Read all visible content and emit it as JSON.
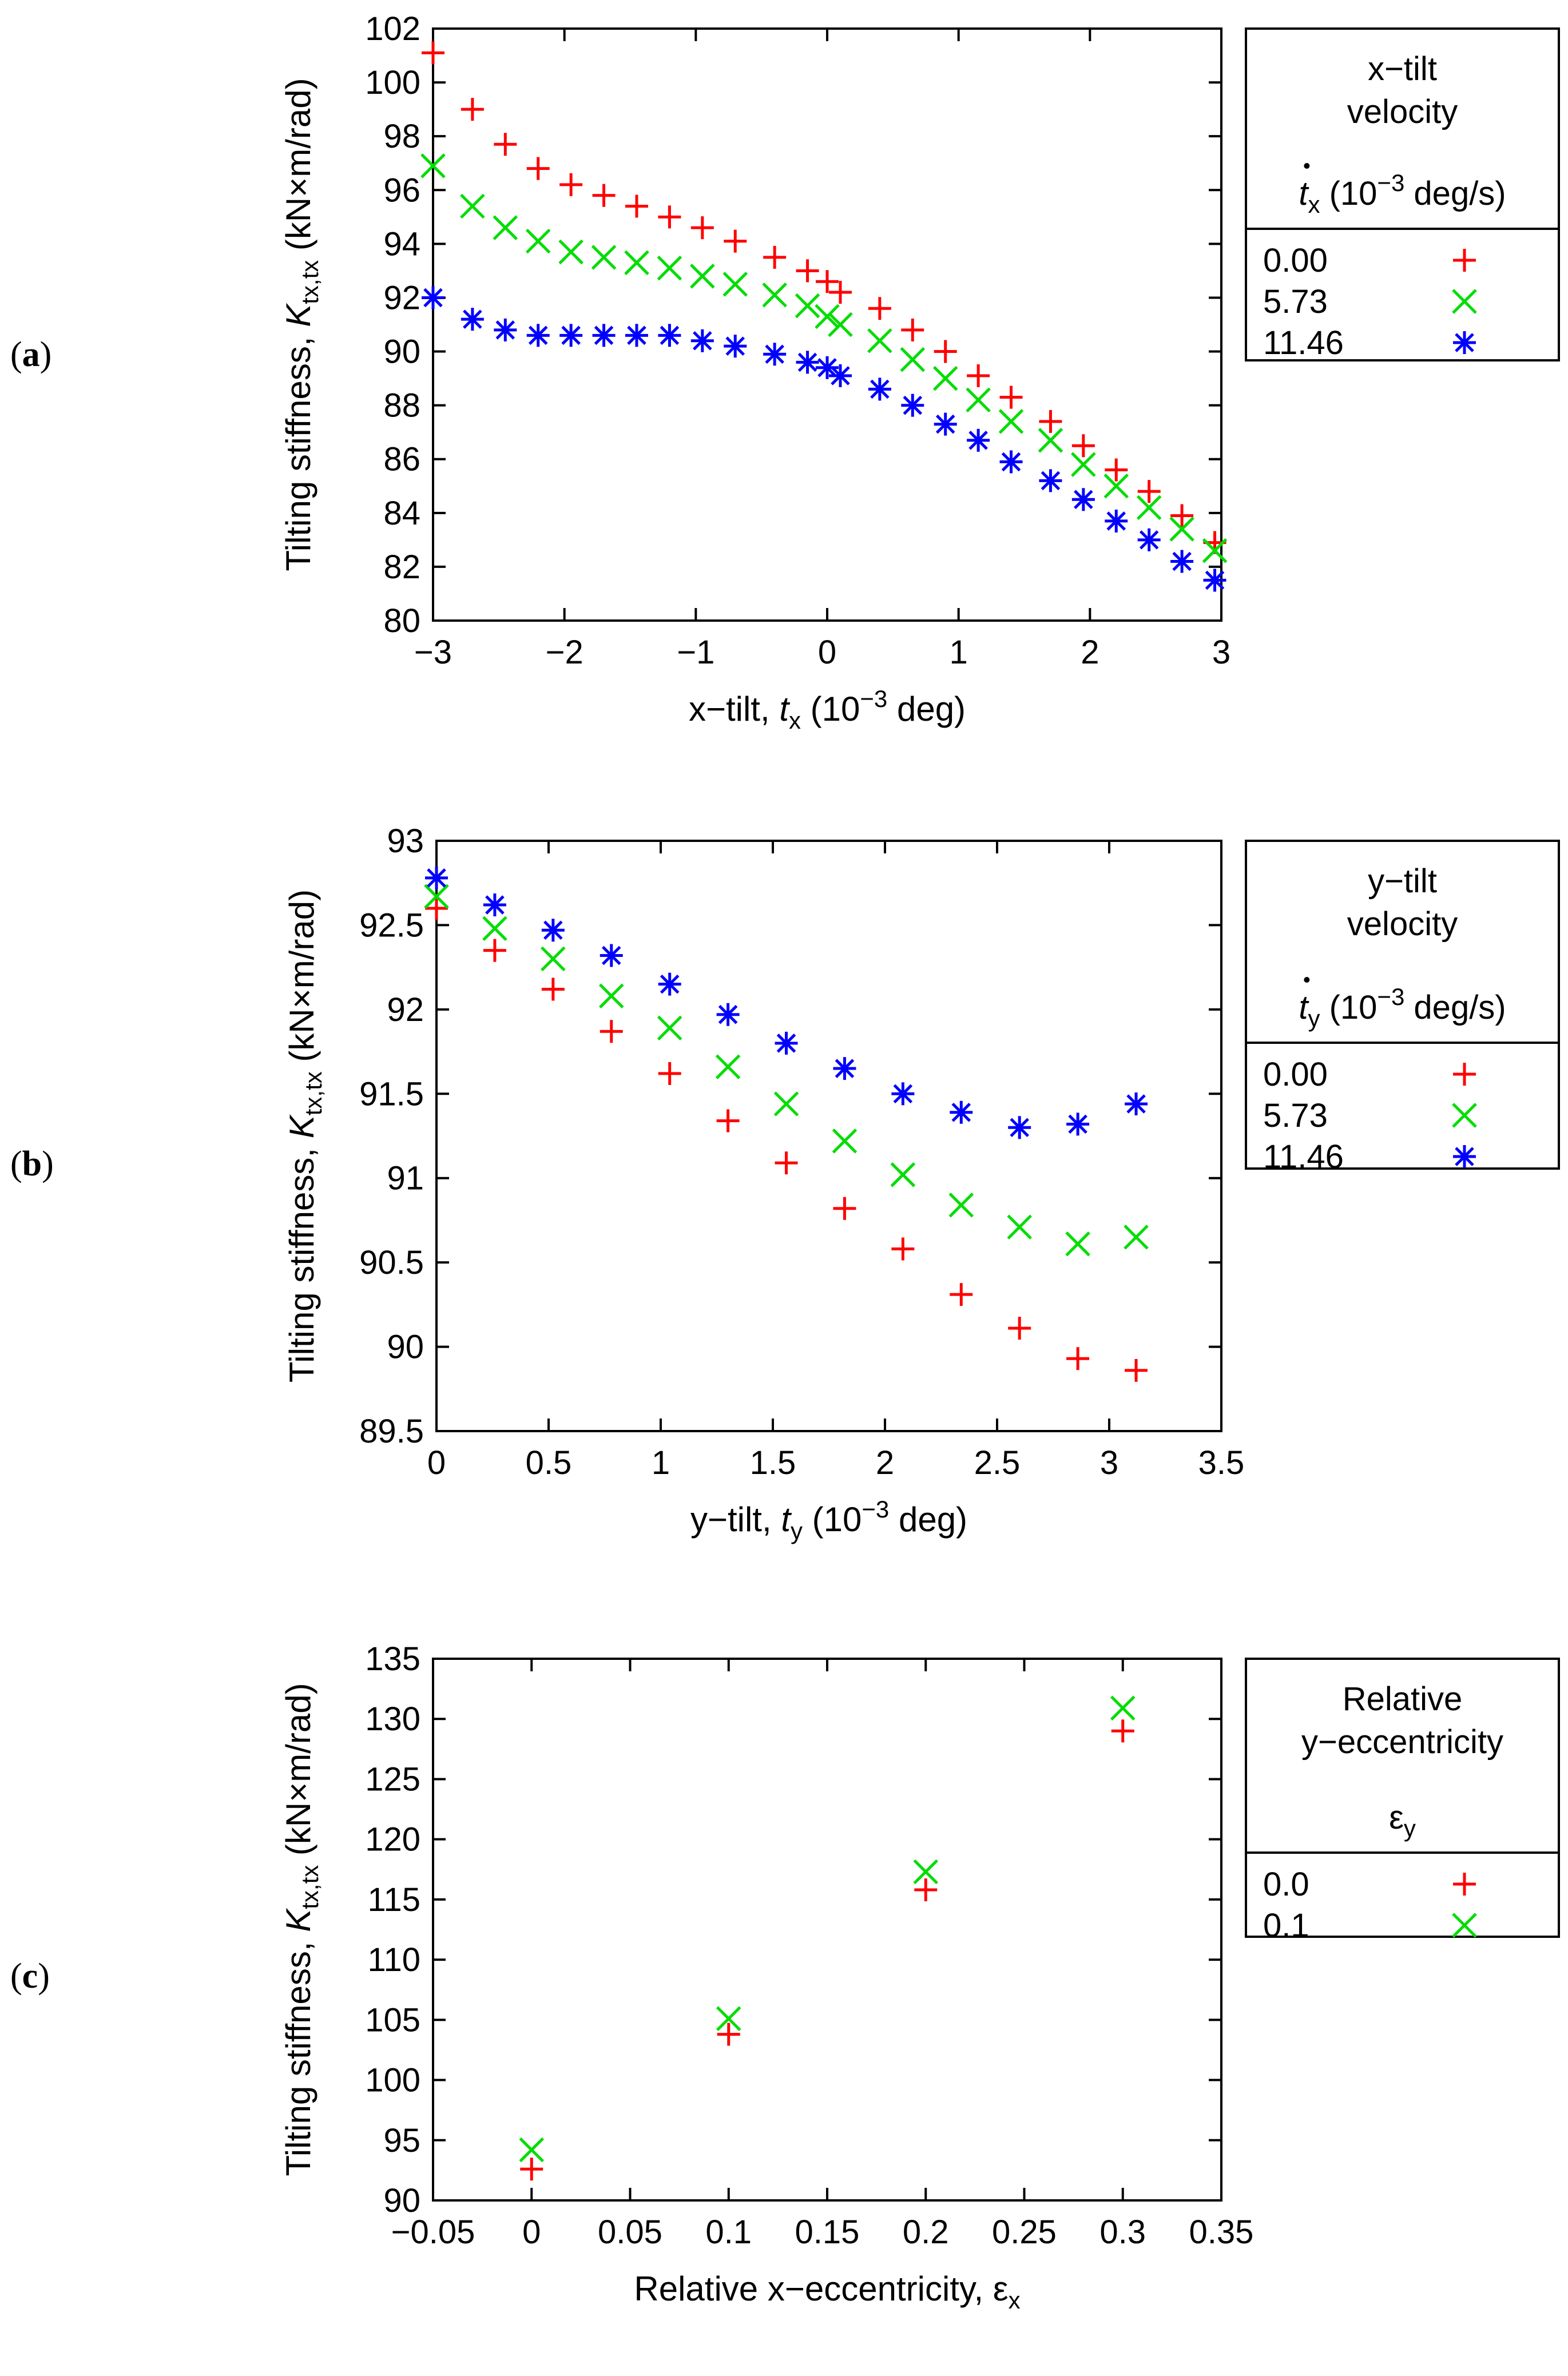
{
  "colors": {
    "red": "#ff0000",
    "green": "#00dd00",
    "blue": "#0000ff"
  },
  "chart_data": [
    {
      "type": "scatter",
      "panel_label": "a",
      "ylabel": "Tilting stiffness, K",
      "ylabel_sub": "tx,tx",
      "ylabel_unit": " (kN×m/rad)",
      "xlabel": "x−tilt, t",
      "xlabel_sub": "x",
      "xlabel_unit": " (10",
      "xlabel_exp": "−3",
      "xlabel_tail": " deg)",
      "xlim": [
        -3,
        3
      ],
      "ylim": [
        80,
        102
      ],
      "xticks": [
        -3,
        -2,
        -1,
        0,
        1,
        2,
        3
      ],
      "xtick_labels": [
        "−3",
        "−2",
        "−1",
        "0",
        "1",
        "2",
        "3"
      ],
      "yticks": [
        80,
        82,
        84,
        86,
        88,
        90,
        92,
        94,
        96,
        98,
        100,
        102
      ],
      "ytick_labels": [
        "80",
        "82",
        "84",
        "86",
        "88",
        "90",
        "92",
        "94",
        "96",
        "98",
        "100",
        "102"
      ],
      "legend": {
        "title_lines": [
          "x−tilt",
          "velocity"
        ],
        "var_main": "t",
        "var_sub": "x",
        "var_unit": " (10",
        "var_exp": "−3",
        "var_tail": " deg/s)",
        "entries": [
          "0.00",
          "5.73",
          "11.46"
        ]
      },
      "series": [
        {
          "name": "0.00",
          "marker": "plus",
          "color": "#ff0000",
          "x": [
            -3,
            -2.7,
            -2.45,
            -2.2,
            -1.95,
            -1.7,
            -1.45,
            -1.2,
            -0.95,
            -0.7,
            -0.4,
            -0.15,
            0,
            0.1,
            0.4,
            0.65,
            0.9,
            1.15,
            1.4,
            1.7,
            1.95,
            2.2,
            2.45,
            2.7,
            2.95
          ],
          "y": [
            101.1,
            99.0,
            97.7,
            96.8,
            96.2,
            95.8,
            95.4,
            95.0,
            94.6,
            94.1,
            93.5,
            93.0,
            92.6,
            92.2,
            91.6,
            90.8,
            90.0,
            89.1,
            88.3,
            87.4,
            86.5,
            85.6,
            84.8,
            83.9,
            82.9
          ]
        },
        {
          "name": "5.73",
          "marker": "cross",
          "color": "#00dd00",
          "x": [
            -3,
            -2.7,
            -2.45,
            -2.2,
            -1.95,
            -1.7,
            -1.45,
            -1.2,
            -0.95,
            -0.7,
            -0.4,
            -0.15,
            0,
            0.1,
            0.4,
            0.65,
            0.9,
            1.15,
            1.4,
            1.7,
            1.95,
            2.2,
            2.45,
            2.7,
            2.95
          ],
          "y": [
            96.9,
            95.4,
            94.6,
            94.1,
            93.7,
            93.5,
            93.3,
            93.1,
            92.8,
            92.5,
            92.1,
            91.7,
            91.3,
            91.0,
            90.4,
            89.7,
            89.0,
            88.2,
            87.4,
            86.7,
            85.8,
            85.0,
            84.2,
            83.4,
            82.6
          ]
        },
        {
          "name": "11.46",
          "marker": "star",
          "color": "#0000ff",
          "x": [
            -3,
            -2.7,
            -2.45,
            -2.2,
            -1.95,
            -1.7,
            -1.45,
            -1.2,
            -0.95,
            -0.7,
            -0.4,
            -0.15,
            0,
            0.1,
            0.4,
            0.65,
            0.9,
            1.15,
            1.4,
            1.7,
            1.95,
            2.2,
            2.45,
            2.7,
            2.95
          ],
          "y": [
            92.0,
            91.2,
            90.8,
            90.6,
            90.6,
            90.6,
            90.6,
            90.6,
            90.4,
            90.2,
            89.9,
            89.6,
            89.4,
            89.1,
            88.6,
            88.0,
            87.3,
            86.7,
            85.9,
            85.2,
            84.5,
            83.7,
            83.0,
            82.2,
            81.5
          ]
        }
      ]
    },
    {
      "type": "scatter",
      "panel_label": "b",
      "ylabel": "Tilting stiffness, K",
      "ylabel_sub": "tx,tx",
      "ylabel_unit": " (kN×m/rad)",
      "xlabel": "y−tilt, t",
      "xlabel_sub": "y",
      "xlabel_unit": " (10",
      "xlabel_exp": "−3",
      "xlabel_tail": " deg)",
      "xlim": [
        0,
        3.5
      ],
      "ylim": [
        89.5,
        93
      ],
      "xticks": [
        0,
        0.5,
        1,
        1.5,
        2,
        2.5,
        3,
        3.5
      ],
      "xtick_labels": [
        "0",
        "0.5",
        "1",
        "1.5",
        "2",
        "2.5",
        "3",
        "3.5"
      ],
      "yticks": [
        89.5,
        90,
        90.5,
        91,
        91.5,
        92,
        92.5,
        93
      ],
      "ytick_labels": [
        "89.5",
        "90",
        "90.5",
        "91",
        "91.5",
        "92",
        "92.5",
        "93"
      ],
      "legend": {
        "title_lines": [
          "y−tilt",
          "velocity"
        ],
        "var_main": "t",
        "var_sub": "y",
        "var_unit": " (10",
        "var_exp": "−3",
        "var_tail": " deg/s)",
        "entries": [
          "0.00",
          "5.73",
          "11.46"
        ]
      },
      "series": [
        {
          "name": "0.00",
          "marker": "plus",
          "color": "#ff0000",
          "x": [
            0,
            0.26,
            0.52,
            0.78,
            1.04,
            1.3,
            1.56,
            1.82,
            2.08,
            2.34,
            2.6,
            2.86,
            3.12
          ],
          "y": [
            92.6,
            92.35,
            92.12,
            91.87,
            91.62,
            91.34,
            91.09,
            90.82,
            90.58,
            90.31,
            90.11,
            89.93,
            89.86
          ]
        },
        {
          "name": "5.73",
          "marker": "cross",
          "color": "#00dd00",
          "x": [
            0,
            0.26,
            0.52,
            0.78,
            1.04,
            1.3,
            1.56,
            1.82,
            2.08,
            2.34,
            2.6,
            2.86,
            3.12
          ],
          "y": [
            92.67,
            92.48,
            92.3,
            92.08,
            91.89,
            91.66,
            91.44,
            91.22,
            91.02,
            90.84,
            90.71,
            90.61,
            90.65
          ]
        },
        {
          "name": "11.46",
          "marker": "star",
          "color": "#0000ff",
          "x": [
            0,
            0.26,
            0.52,
            0.78,
            1.04,
            1.3,
            1.56,
            1.82,
            2.08,
            2.34,
            2.6,
            2.86,
            3.12
          ],
          "y": [
            92.78,
            92.62,
            92.47,
            92.32,
            92.15,
            91.97,
            91.8,
            91.65,
            91.5,
            91.39,
            91.3,
            91.32,
            91.44
          ]
        }
      ]
    },
    {
      "type": "scatter",
      "panel_label": "c",
      "ylabel": "Tilting stiffness, K",
      "ylabel_sub": "tx,tx",
      "ylabel_unit": " (kN×m/rad)",
      "xlabel": "Relative x−eccentricity, ε",
      "xlabel_sub": "x",
      "xlim": [
        -0.05,
        0.35
      ],
      "ylim": [
        90,
        135
      ],
      "xticks": [
        -0.05,
        0,
        0.05,
        0.1,
        0.15,
        0.2,
        0.25,
        0.3,
        0.35
      ],
      "xtick_labels": [
        "−0.05",
        "0",
        "0.05",
        "0.1",
        "0.15",
        "0.2",
        "0.25",
        "0.3",
        "0.35"
      ],
      "yticks": [
        90,
        95,
        100,
        105,
        110,
        115,
        120,
        125,
        130,
        135
      ],
      "ytick_labels": [
        "90",
        "95",
        "100",
        "105",
        "110",
        "115",
        "120",
        "125",
        "130",
        "135"
      ],
      "legend": {
        "title_lines": [
          "Relative",
          "y−eccentricity"
        ],
        "var_main": "ε",
        "var_sub": "y",
        "entries": [
          "0.0",
          "0.1"
        ]
      },
      "series": [
        {
          "name": "0.0",
          "marker": "plus",
          "color": "#ff0000",
          "x": [
            0,
            0.1,
            0.2,
            0.3
          ],
          "y": [
            92.6,
            103.8,
            115.8,
            129.0
          ]
        },
        {
          "name": "0.1",
          "marker": "cross",
          "color": "#00dd00",
          "x": [
            0,
            0.1,
            0.2,
            0.3
          ],
          "y": [
            94.2,
            105.1,
            117.3,
            130.9
          ]
        }
      ]
    }
  ]
}
